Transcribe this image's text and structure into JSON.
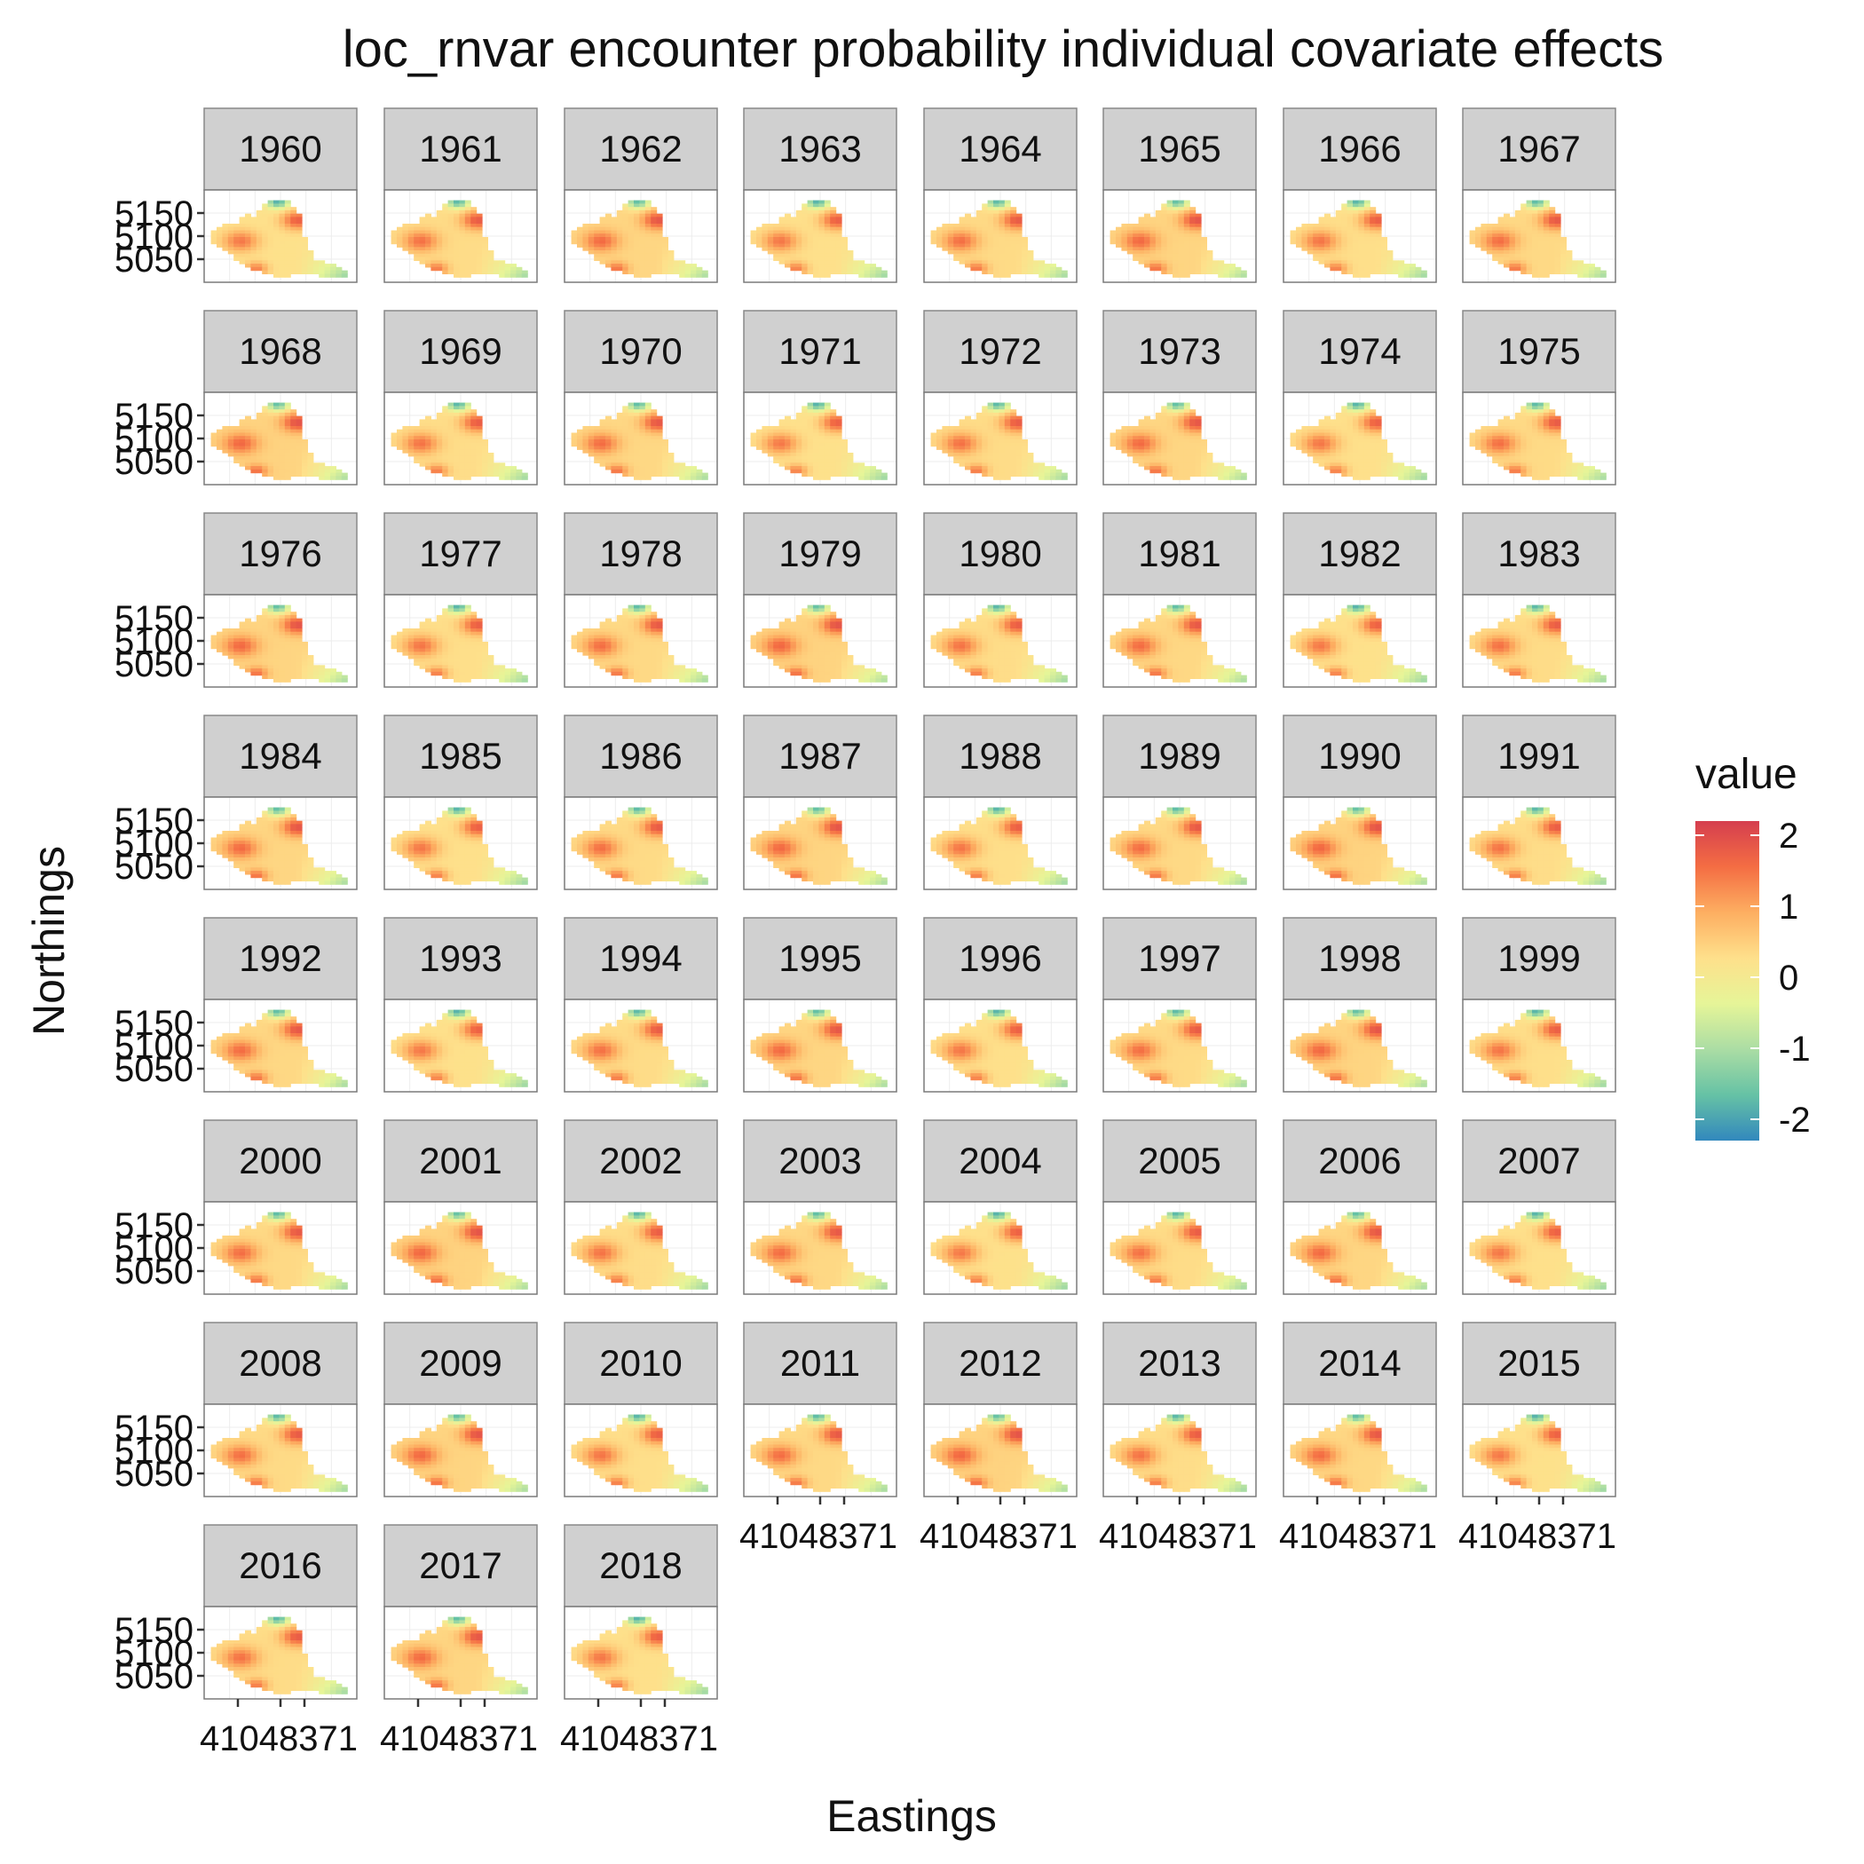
{
  "chart_data": {
    "type": "heatmap",
    "title": "loc_rnvar encounter probability individual covariate effects",
    "xlabel": "Eastings",
    "ylabel": "Northings",
    "facet_label_prefix": "",
    "facets": [
      "1960",
      "1961",
      "1962",
      "1963",
      "1964",
      "1965",
      "1966",
      "1967",
      "1968",
      "1969",
      "1970",
      "1971",
      "1972",
      "1973",
      "1974",
      "1975",
      "1976",
      "1977",
      "1978",
      "1979",
      "1980",
      "1981",
      "1982",
      "1983",
      "1984",
      "1985",
      "1986",
      "1987",
      "1988",
      "1989",
      "1990",
      "1991",
      "1992",
      "1993",
      "1994",
      "1995",
      "1996",
      "1997",
      "1998",
      "1999",
      "2000",
      "2001",
      "2002",
      "2003",
      "2004",
      "2005",
      "2006",
      "2007",
      "2008",
      "2009",
      "2010",
      "2011",
      "2012",
      "2013",
      "2014",
      "2015",
      "2016",
      "2017",
      "2018"
    ],
    "ncol": 8,
    "y_ticks": [
      5050,
      5100,
      5150
    ],
    "x_tick_labels": [
      "410",
      "440",
      "471"
    ],
    "x_tick_text": "41048371",
    "legend": {
      "title": "value",
      "position": "right",
      "breaks": [
        2,
        1,
        0,
        -1,
        -2
      ],
      "range": [
        -2.3,
        2.2
      ],
      "colors": [
        "#3288bd",
        "#66c2a5",
        "#abdda4",
        "#e6f598",
        "#fee08b",
        "#fdae61",
        "#f46d43",
        "#d53e4f"
      ]
    },
    "grid": true
  }
}
